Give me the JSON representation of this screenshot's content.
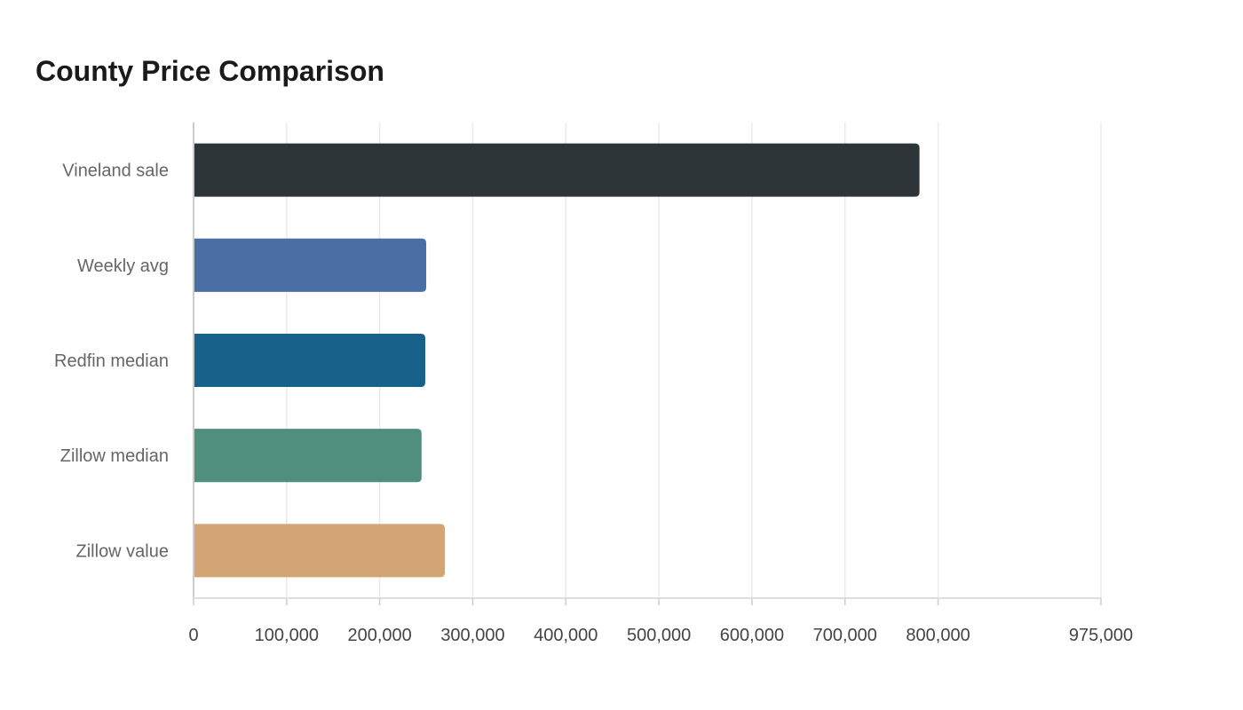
{
  "chart_data": {
    "type": "bar",
    "orientation": "horizontal",
    "title": "County Price Comparison",
    "xlabel": "",
    "ylabel": "",
    "categories": [
      "Vineland sale",
      "Weekly avg",
      "Redfin median",
      "Zillow median",
      "Zillow value"
    ],
    "values": [
      780000,
      250000,
      249000,
      245000,
      270000
    ],
    "colors": [
      "#2e3538",
      "#4a6fa5",
      "#17618a",
      "#4f8f7c",
      "#d4a574"
    ],
    "xlim": [
      0,
      975000
    ],
    "xticks": [
      0,
      100000,
      200000,
      300000,
      400000,
      500000,
      600000,
      700000,
      800000,
      975000
    ],
    "xtick_labels": [
      "0",
      "100,000",
      "200,000",
      "300,000",
      "400,000",
      "500,000",
      "600,000",
      "700,000",
      "800,000",
      "975,000"
    ],
    "grid": true,
    "legend": "none"
  }
}
